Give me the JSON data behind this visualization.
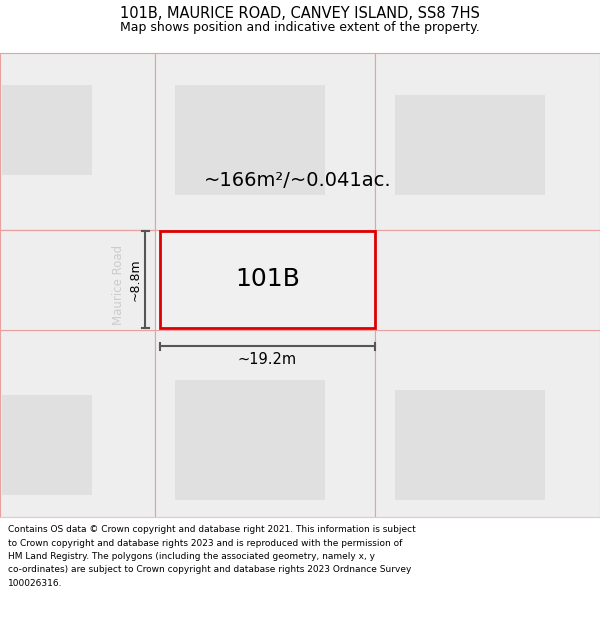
{
  "title_line1": "101B, MAURICE ROAD, CANVEY ISLAND, SS8 7HS",
  "title_line2": "Map shows position and indicative extent of the property.",
  "footer_lines": [
    "Contains OS data © Crown copyright and database right 2021. This information is subject to Crown copyright and database rights 2023 and is reproduced with the permission of",
    "HM Land Registry. The polygons (including the associated geometry, namely x, y",
    "co-ordinates) are subject to Crown copyright and database rights 2023 Ordnance Survey",
    "100026316."
  ],
  "road_label": "Maurice Road",
  "parcel_label": "101B",
  "area_label": "~166m²/~0.041ac.",
  "width_label": "~19.2m",
  "height_label": "~8.8m",
  "highlight_border": "#dd0000",
  "dim_line_color": "#555555",
  "faint_border": "#e8a0a0",
  "map_bg": "#f5f5f5",
  "road_bg": "#ffffff",
  "parcel_outer_fill": "#eeeeee",
  "parcel_inner_fill": "#e0e0e0",
  "main_fill": "#f0f0f0",
  "main_inner_fill": "#e6e6e6"
}
